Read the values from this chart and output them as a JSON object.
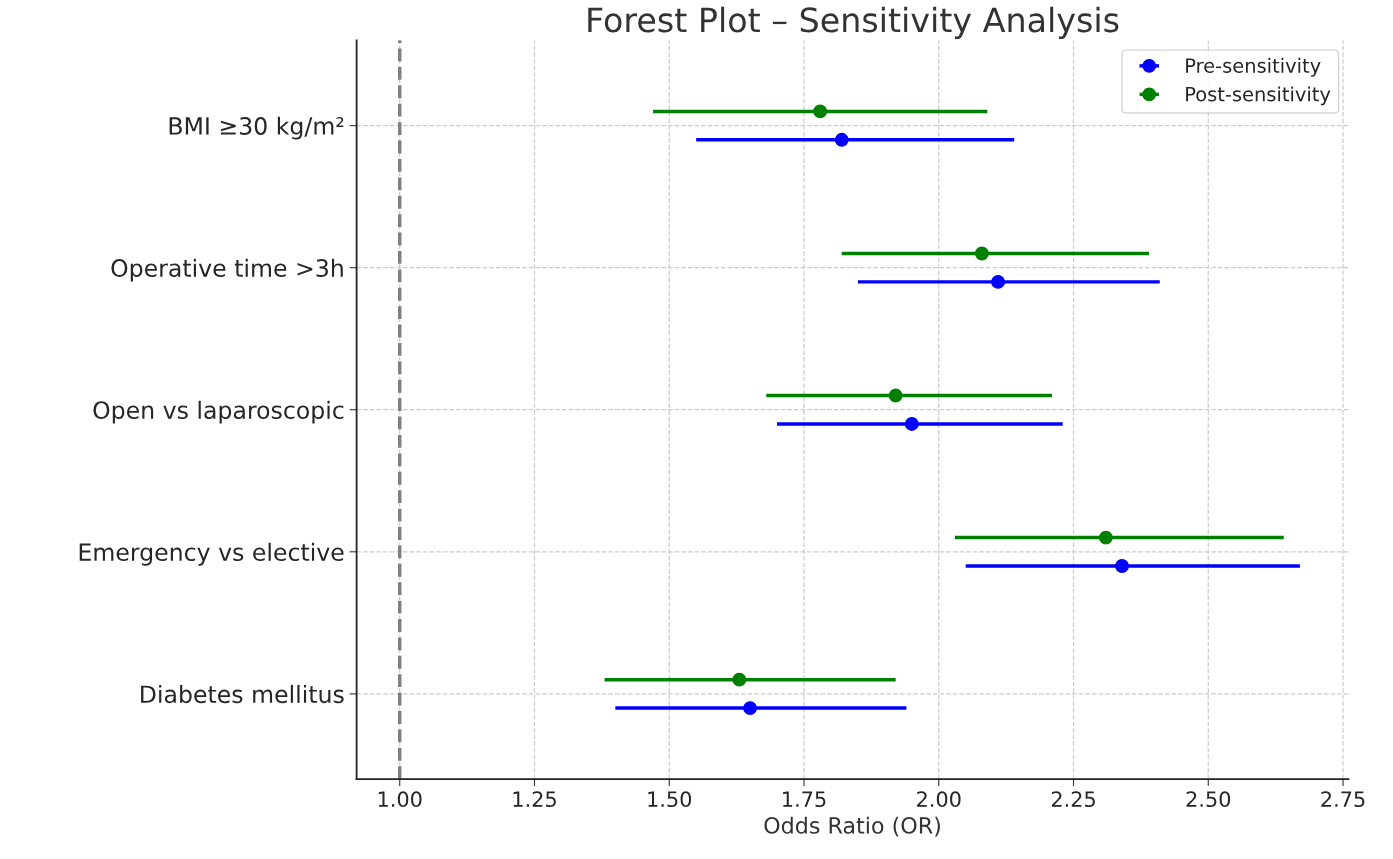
{
  "chart_data": {
    "type": "scatter",
    "title": "Forest Plot – Sensitivity Analysis",
    "xlabel": "Odds Ratio (OR)",
    "orientation": "horizontal",
    "categories": [
      "BMI ≥30 kg/m²",
      "Operative time >3h",
      "Open vs laparoscopic",
      "Emergency vs elective",
      "Diabetes mellitus"
    ],
    "series": [
      {
        "name": "Pre-sensitivity",
        "color": "#0000ff",
        "values": [
          1.82,
          2.11,
          1.95,
          2.34,
          1.65
        ],
        "errors": [
          [
            1.55,
            2.14
          ],
          [
            1.85,
            2.41
          ],
          [
            1.7,
            2.23
          ],
          [
            2.05,
            2.67
          ],
          [
            1.4,
            1.94
          ]
        ]
      },
      {
        "name": "Post-sensitivity",
        "color": "#008000",
        "values": [
          1.78,
          2.08,
          1.92,
          2.31,
          1.63
        ],
        "errors": [
          [
            1.47,
            2.09
          ],
          [
            1.82,
            2.39
          ],
          [
            1.68,
            2.21
          ],
          [
            2.03,
            2.64
          ],
          [
            1.38,
            1.92
          ]
        ]
      }
    ],
    "xlim": [
      0.92,
      2.76
    ],
    "xticks": [
      {
        "value": 1.0,
        "label": "1.00"
      },
      {
        "value": 1.25,
        "label": "1.25"
      },
      {
        "value": 1.5,
        "label": "1.50"
      },
      {
        "value": 1.75,
        "label": "1.75"
      },
      {
        "value": 2.0,
        "label": "2.00"
      },
      {
        "value": 2.25,
        "label": "2.25"
      },
      {
        "value": 2.5,
        "label": "2.50"
      },
      {
        "value": 2.75,
        "label": "2.75"
      }
    ],
    "ref_lines": [
      {
        "axis": "x",
        "value": 1.0,
        "color": "#808080",
        "line_style": "dashed"
      }
    ],
    "grid": true,
    "legend": "top right",
    "marker": "circle"
  }
}
